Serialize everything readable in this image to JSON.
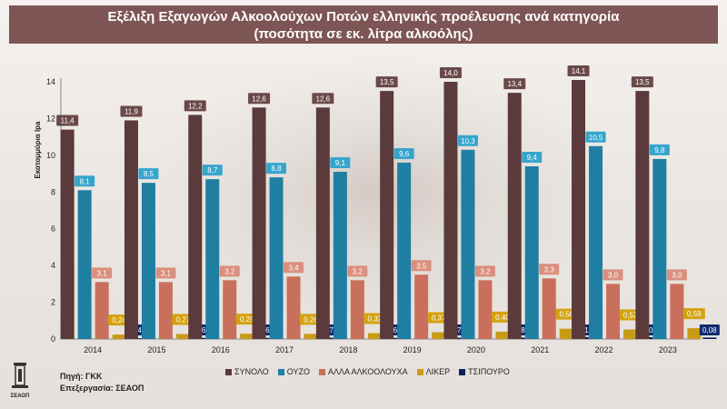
{
  "header": {
    "title_line1": "Εξέλιξη Εξαγωγών Αλκοολούχων Ποτών ελληνικής προέλευσης ανά κατηγορία",
    "title_line2": "(ποσότητα σε εκ. λίτρα αλκοόλης)"
  },
  "footer": {
    "source_label": "Πηγή: ΓΚΚ",
    "processing_label": "Επεξεργασία: ΣΕΑΟΠ",
    "logo_text": "ΣΕΑΟΠ"
  },
  "chart_data": {
    "type": "bar",
    "categories": [
      "2014",
      "2015",
      "2016",
      "2017",
      "2018",
      "2019",
      "2020",
      "2021",
      "2022",
      "2023"
    ],
    "ylabel": "Εκατομμύρια lpa",
    "ylim": [
      0,
      14
    ],
    "yticks": [
      0,
      2,
      4,
      6,
      8,
      10,
      12,
      14
    ],
    "grid": false,
    "legend_position": "bottom",
    "series": [
      {
        "name": "ΣΥΝΟΛΟ",
        "color": "#5a3a3a",
        "label_bg": "#6b4949",
        "values": [
          11.4,
          11.9,
          12.2,
          12.6,
          12.6,
          13.5,
          14.0,
          13.4,
          14.1,
          13.5
        ],
        "labels": [
          "11,4",
          "11,9",
          "12,2",
          "12,6",
          "12,6",
          "13,5",
          "14,0",
          "13,4",
          "14,1",
          "13,5"
        ]
      },
      {
        "name": "ΟΥΖΟ",
        "color": "#1f7fa3",
        "label_bg": "#36a5cc",
        "values": [
          8.1,
          8.5,
          8.7,
          8.8,
          9.1,
          9.6,
          10.3,
          9.4,
          10.5,
          9.8
        ],
        "labels": [
          "8,1",
          "8,5",
          "8,7",
          "8,8",
          "9,1",
          "9,6",
          "10,3",
          "9,4",
          "10,5",
          "9,8"
        ]
      },
      {
        "name": "ΑΛΛΑ ΑΛΚΟΟΛΟΥΧΑ",
        "color": "#c8705c",
        "label_bg": "#d9907e",
        "values": [
          3.1,
          3.1,
          3.2,
          3.4,
          3.2,
          3.5,
          3.2,
          3.3,
          3.0,
          3.0
        ],
        "labels": [
          "3,1",
          "3,1",
          "3,2",
          "3,4",
          "3,2",
          "3,5",
          "3,2",
          "3,3",
          "3,0",
          "3,0"
        ]
      },
      {
        "name": "ΛΙΚΕΡ",
        "color": "#c79b16",
        "label_bg": "#d4a20e",
        "values": [
          0.24,
          0.27,
          0.29,
          0.28,
          0.32,
          0.37,
          0.4,
          0.56,
          0.52,
          0.59
        ],
        "labels": [
          "0,24",
          "0,27",
          "0,29",
          "0,28",
          "0,32",
          "0,37",
          "0,40",
          "0,56",
          "0,52",
          "0,59"
        ]
      },
      {
        "name": "ΤΣΙΠΟΥΡΟ",
        "color": "#0d1f57",
        "label_bg": "#102a6e",
        "values": [
          0.04,
          0.06,
          0.06,
          0.07,
          0.06,
          0.07,
          0.08,
          0.11,
          0.1,
          0.08
        ],
        "labels": [
          "0,04",
          "0,06",
          "0,06",
          "0,07",
          "0,06",
          "0,07",
          "0,08",
          "0,11",
          "0,10",
          "0,08"
        ]
      }
    ]
  }
}
